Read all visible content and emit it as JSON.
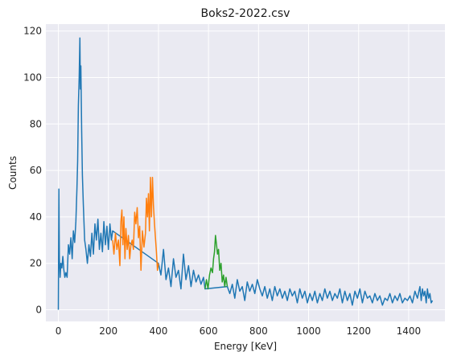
{
  "chart_data": {
    "type": "line",
    "title": "Boks2-2022.csv",
    "xlabel": "Energy [KeV]",
    "ylabel": "Counts",
    "xlim": [
      -50,
      1545
    ],
    "ylim": [
      -5,
      123
    ],
    "xticks": [
      0,
      200,
      400,
      600,
      800,
      1000,
      1200,
      1400
    ],
    "yticks": [
      0,
      20,
      40,
      60,
      80,
      100,
      120
    ],
    "grid": true,
    "series": [
      {
        "color": "#1f77b4",
        "points": [
          [
            0,
            0
          ],
          [
            2,
            52
          ],
          [
            4,
            22
          ],
          [
            7,
            14
          ],
          [
            10,
            20
          ],
          [
            14,
            18
          ],
          [
            18,
            23
          ],
          [
            22,
            17
          ],
          [
            26,
            14
          ],
          [
            30,
            16
          ],
          [
            35,
            14
          ],
          [
            40,
            28
          ],
          [
            45,
            24
          ],
          [
            50,
            31
          ],
          [
            55,
            22
          ],
          [
            60,
            34
          ],
          [
            65,
            29
          ],
          [
            70,
            38
          ],
          [
            74,
            52
          ],
          [
            77,
            64
          ],
          [
            80,
            88
          ],
          [
            83,
            100
          ],
          [
            86,
            117
          ],
          [
            88,
            95
          ],
          [
            90,
            105
          ],
          [
            93,
            77
          ],
          [
            96,
            58
          ],
          [
            100,
            45
          ],
          [
            105,
            30
          ],
          [
            110,
            26
          ],
          [
            116,
            20
          ],
          [
            122,
            28
          ],
          [
            128,
            23
          ],
          [
            134,
            33
          ],
          [
            140,
            24
          ],
          [
            146,
            37
          ],
          [
            152,
            30
          ],
          [
            158,
            39
          ],
          [
            164,
            26
          ],
          [
            170,
            33
          ],
          [
            176,
            25
          ],
          [
            182,
            38
          ],
          [
            188,
            28
          ],
          [
            194,
            36
          ],
          [
            200,
            26
          ],
          [
            206,
            37
          ],
          [
            212,
            30
          ],
          [
            217,
            34
          ],
          [
            400,
            20
          ],
          [
            410,
            15
          ],
          [
            420,
            26
          ],
          [
            430,
            13
          ],
          [
            440,
            18
          ],
          [
            450,
            10
          ],
          [
            460,
            22
          ],
          [
            470,
            14
          ],
          [
            480,
            17
          ],
          [
            490,
            9
          ],
          [
            500,
            24
          ],
          [
            510,
            13
          ],
          [
            520,
            19
          ],
          [
            530,
            10
          ],
          [
            540,
            17
          ],
          [
            550,
            12
          ],
          [
            560,
            15
          ],
          [
            570,
            11
          ],
          [
            580,
            14
          ],
          [
            586,
            9
          ],
          [
            675,
            10
          ],
          [
            685,
            7
          ],
          [
            695,
            11
          ],
          [
            705,
            5
          ],
          [
            715,
            13
          ],
          [
            725,
            8
          ],
          [
            735,
            10
          ],
          [
            745,
            4
          ],
          [
            755,
            12
          ],
          [
            765,
            8
          ],
          [
            775,
            11
          ],
          [
            785,
            7
          ],
          [
            795,
            13
          ],
          [
            805,
            9
          ],
          [
            815,
            6
          ],
          [
            825,
            10
          ],
          [
            835,
            5
          ],
          [
            845,
            9
          ],
          [
            855,
            4
          ],
          [
            865,
            10
          ],
          [
            875,
            6
          ],
          [
            885,
            9
          ],
          [
            895,
            5
          ],
          [
            905,
            8
          ],
          [
            915,
            4
          ],
          [
            925,
            9
          ],
          [
            935,
            6
          ],
          [
            945,
            8
          ],
          [
            955,
            3
          ],
          [
            965,
            9
          ],
          [
            975,
            5
          ],
          [
            985,
            8
          ],
          [
            995,
            3
          ],
          [
            1005,
            7
          ],
          [
            1015,
            4
          ],
          [
            1025,
            8
          ],
          [
            1035,
            3
          ],
          [
            1045,
            7
          ],
          [
            1055,
            4
          ],
          [
            1065,
            9
          ],
          [
            1075,
            5
          ],
          [
            1085,
            8
          ],
          [
            1095,
            4
          ],
          [
            1105,
            7
          ],
          [
            1115,
            5
          ],
          [
            1125,
            9
          ],
          [
            1135,
            3
          ],
          [
            1145,
            8
          ],
          [
            1155,
            4
          ],
          [
            1165,
            7
          ],
          [
            1175,
            2
          ],
          [
            1185,
            8
          ],
          [
            1195,
            5
          ],
          [
            1205,
            9
          ],
          [
            1215,
            3
          ],
          [
            1225,
            8
          ],
          [
            1235,
            5
          ],
          [
            1245,
            6
          ],
          [
            1255,
            3
          ],
          [
            1265,
            7
          ],
          [
            1275,
            4
          ],
          [
            1285,
            6
          ],
          [
            1295,
            2
          ],
          [
            1305,
            5
          ],
          [
            1315,
            4
          ],
          [
            1325,
            7
          ],
          [
            1335,
            3
          ],
          [
            1345,
            6
          ],
          [
            1355,
            4
          ],
          [
            1365,
            7
          ],
          [
            1375,
            3
          ],
          [
            1385,
            5
          ],
          [
            1395,
            4
          ],
          [
            1405,
            6
          ],
          [
            1415,
            3
          ],
          [
            1425,
            8
          ],
          [
            1435,
            5
          ],
          [
            1445,
            10
          ],
          [
            1450,
            4
          ],
          [
            1455,
            9
          ],
          [
            1460,
            6
          ],
          [
            1465,
            8
          ],
          [
            1470,
            3
          ],
          [
            1475,
            9
          ],
          [
            1480,
            5
          ],
          [
            1485,
            7
          ],
          [
            1490,
            3
          ],
          [
            1495,
            4
          ]
        ]
      },
      {
        "color": "#ff7f0e",
        "points": [
          [
            217,
            30
          ],
          [
            222,
            24
          ],
          [
            228,
            33
          ],
          [
            234,
            26
          ],
          [
            240,
            30
          ],
          [
            246,
            19
          ],
          [
            250,
            38
          ],
          [
            254,
            43
          ],
          [
            258,
            28
          ],
          [
            262,
            40
          ],
          [
            266,
            22
          ],
          [
            270,
            35
          ],
          [
            275,
            26
          ],
          [
            280,
            32
          ],
          [
            285,
            22
          ],
          [
            290,
            28
          ],
          [
            295,
            30
          ],
          [
            300,
            26
          ],
          [
            305,
            42
          ],
          [
            310,
            37
          ],
          [
            315,
            44
          ],
          [
            320,
            31
          ],
          [
            325,
            36
          ],
          [
            330,
            17
          ],
          [
            336,
            34
          ],
          [
            342,
            27
          ],
          [
            348,
            33
          ],
          [
            352,
            48
          ],
          [
            356,
            40
          ],
          [
            360,
            50
          ],
          [
            364,
            34
          ],
          [
            368,
            57
          ],
          [
            372,
            40
          ],
          [
            376,
            57
          ],
          [
            380,
            45
          ],
          [
            384,
            37
          ],
          [
            388,
            31
          ],
          [
            392,
            25
          ],
          [
            396,
            17
          ],
          [
            400,
            20
          ]
        ]
      },
      {
        "color": "#2ca02c",
        "points": [
          [
            586,
            9
          ],
          [
            592,
            13
          ],
          [
            598,
            9
          ],
          [
            604,
            15
          ],
          [
            610,
            18
          ],
          [
            616,
            16
          ],
          [
            620,
            22
          ],
          [
            624,
            25
          ],
          [
            628,
            32
          ],
          [
            632,
            28
          ],
          [
            636,
            24
          ],
          [
            640,
            26
          ],
          [
            645,
            17
          ],
          [
            650,
            20
          ],
          [
            655,
            12
          ],
          [
            660,
            15
          ],
          [
            665,
            10
          ],
          [
            670,
            14
          ],
          [
            675,
            10
          ]
        ]
      }
    ]
  }
}
